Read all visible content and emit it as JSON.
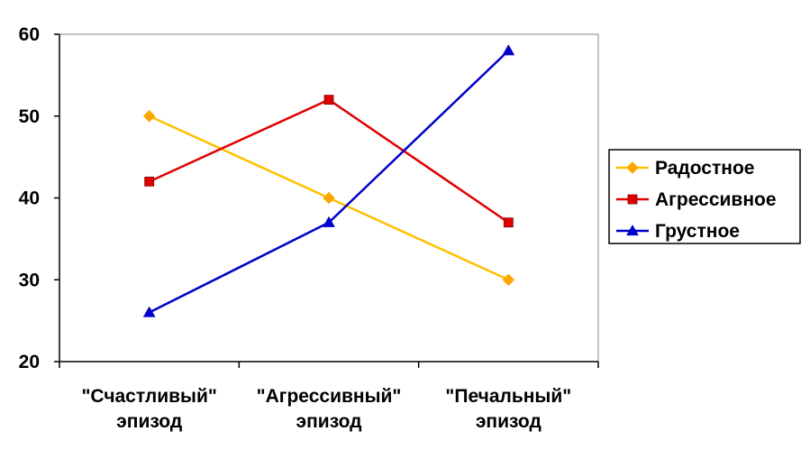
{
  "chart_data": {
    "type": "line",
    "categories": [
      [
        "\"Счастливый\"",
        "эпизод"
      ],
      [
        "\"Агрессивный\"",
        "эпизод"
      ],
      [
        "\"Печальный\"",
        "эпизод"
      ]
    ],
    "series": [
      {
        "name": "Радостное",
        "values": [
          50,
          40,
          30
        ],
        "color": "#FFC000",
        "marker_color": "#FFA500",
        "marker": "diamond"
      },
      {
        "name": "Агрессивное",
        "values": [
          42,
          52,
          37
        ],
        "color": "#E00000",
        "marker_color": "#E00000",
        "marker": "square"
      },
      {
        "name": "Грустное",
        "values": [
          26,
          37,
          58
        ],
        "color": "#0000CC",
        "marker_color": "#0000CC",
        "marker": "triangle"
      }
    ],
    "ylim": [
      20,
      60
    ],
    "yticks": [
      "20",
      "30",
      "40",
      "50",
      "60"
    ],
    "grid": false,
    "legend_position": "right"
  }
}
